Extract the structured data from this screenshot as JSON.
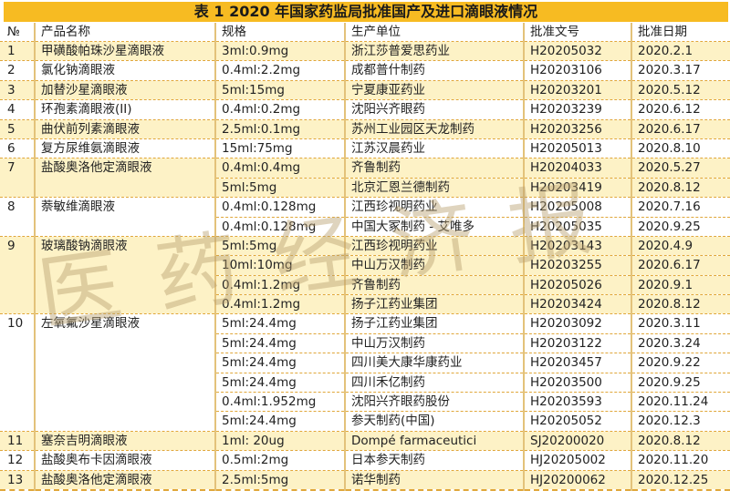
{
  "title": "表 1  2020 年国家药监局批准国产及进口滴眼液情况",
  "watermark": "医药经济报",
  "colors": {
    "title_bg": "#f7bb22",
    "row_highlight": "#fdf2c6",
    "dash": "#e0a73a"
  },
  "headers": [
    "№",
    "产品名称",
    "规格",
    "生产单位",
    "批准文号",
    "批准日期"
  ],
  "groups": [
    {
      "no": "1",
      "name": "甲磺酸帕珠沙星滴眼液",
      "items": [
        [
          "3ml:0.9mg",
          "浙江莎普爱思药业",
          "H20205032",
          "2020.2.1"
        ]
      ]
    },
    {
      "no": "2",
      "name": "氯化钠滴眼液",
      "items": [
        [
          "0.4ml:2.2mg",
          "成都普什制药",
          "H20203106",
          "2020.3.17"
        ]
      ]
    },
    {
      "no": "3",
      "name": "加替沙星滴眼液",
      "items": [
        [
          "5ml:15mg",
          "宁夏康亚药业",
          "H20203201",
          "2020.5.12"
        ]
      ]
    },
    {
      "no": "4",
      "name": "环孢素滴眼液(II)",
      "items": [
        [
          "0.4ml:0.2mg",
          "沈阳兴齐眼药",
          "H20203239",
          "2020.6.12"
        ]
      ]
    },
    {
      "no": "5",
      "name": "曲伏前列素滴眼液",
      "items": [
        [
          "2.5ml:0.1mg",
          "苏州工业园区天龙制药",
          "H20203256",
          "2020.6.17"
        ]
      ]
    },
    {
      "no": "6",
      "name": "复方尿维氨滴眼液",
      "items": [
        [
          "15ml:75mg",
          "江苏汉晨药业",
          "H20205013",
          "2020.8.10"
        ]
      ]
    },
    {
      "no": "7",
      "name": "盐酸奥洛他定滴眼液",
      "items": [
        [
          "0.4ml:0.4mg",
          "齐鲁制药",
          "H20204033",
          "2020.5.27"
        ],
        [
          "5ml:5mg",
          "北京汇恩兰德制药",
          "H20203419",
          "2020.8.12"
        ]
      ]
    },
    {
      "no": "8",
      "name": "萘敏维滴眼液",
      "items": [
        [
          "0.4ml:0.128mg",
          "江西珍视明药业",
          "H20205008",
          "2020.7.16"
        ],
        [
          "0.4ml:0.128mg",
          "中国大冢制药 - 艾唯多",
          "H20205035",
          "2020.9.25"
        ]
      ]
    },
    {
      "no": "9",
      "name": "玻璃酸钠滴眼液",
      "items": [
        [
          "5ml:5mg",
          "江西珍视明药业",
          "H20203143",
          "2020.4.9"
        ],
        [
          "10ml:10mg",
          "中山万汉制药",
          "H20203255",
          "2020.6.17"
        ],
        [
          "0.4ml:1.2mg",
          "齐鲁制药",
          "H20205026",
          "2020.9.1"
        ],
        [
          "0.4ml:1.2mg",
          "扬子江药业集团",
          "H20203424",
          "2020.8.12"
        ]
      ]
    },
    {
      "no": "10",
      "name": "左氧氟沙星滴眼液",
      "items": [
        [
          "5ml:24.4mg",
          "扬子江药业集团",
          "H20203092",
          "2020.3.11"
        ],
        [
          "5ml:24.4mg",
          "中山万汉制药",
          "H20203122",
          "2020.3.24"
        ],
        [
          "5ml:24.4mg",
          "四川美大康华康药业",
          "H20203457",
          "2020.9.22"
        ],
        [
          "5ml:24.4mg",
          "四川禾亿制药",
          "H20203500",
          "2020.9.25"
        ],
        [
          "0.4ml:1.952mg",
          "沈阳兴齐眼药股份",
          "H20203593",
          "2020.11.24"
        ],
        [
          "5ml:24.4mg",
          "参天制药(中国)",
          "H20205052",
          "2020.12.3"
        ]
      ]
    },
    {
      "no": "11",
      "name": "塞奈吉明滴眼液",
      "items": [
        [
          "1ml:  20ug",
          "Dompé   farmaceutici",
          "SJ20200020",
          "2020.8.12"
        ]
      ]
    },
    {
      "no": "12",
      "name": "盐酸奥布卡因滴眼液",
      "items": [
        [
          "0.5ml:2mg",
          "日本参天制药",
          "HJ20205002",
          "2020.11.20"
        ]
      ]
    },
    {
      "no": "13",
      "name": "盐酸奥洛他定滴眼液",
      "items": [
        [
          "2.5ml:5mg",
          "诺华制药",
          "HJ20200062",
          "2020.12.25"
        ]
      ]
    }
  ]
}
